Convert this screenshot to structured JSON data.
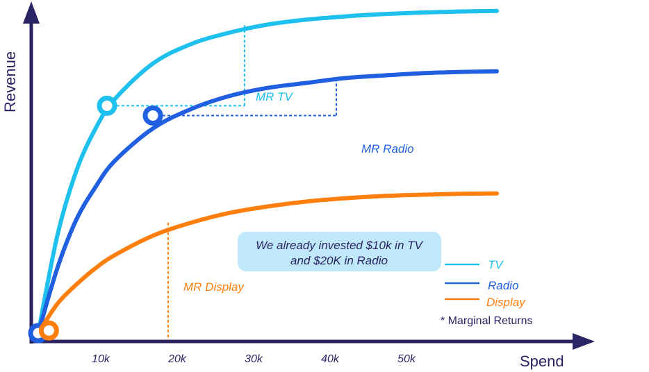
{
  "chart_data": {
    "type": "line",
    "xlabel": "Spend",
    "ylabel": "Revenue",
    "x_ticks": [
      "10k",
      "20k",
      "30k",
      "40k",
      "50k"
    ],
    "xlim": [
      0,
      60
    ],
    "ylim": [
      0,
      100
    ],
    "grid": false,
    "legend_position": "bottom-right",
    "series": [
      {
        "name": "TV",
        "color": "#1ec0ee",
        "x": [
          0,
          2.5,
          5,
          7.5,
          10,
          15,
          20,
          25,
          30,
          35,
          40,
          45,
          50,
          55,
          60
        ],
        "y": [
          0,
          30,
          50,
          63,
          72,
          83,
          89,
          92.5,
          95,
          96.5,
          97.5,
          98.2,
          98.7,
          99,
          99.2
        ]
      },
      {
        "name": "Radio",
        "color": "#1f5fe0",
        "x": [
          0,
          2.5,
          5,
          7.5,
          10,
          15,
          20,
          25,
          30,
          35,
          40,
          45,
          50,
          55,
          60
        ],
        "y": [
          0,
          20,
          35,
          45,
          53,
          63,
          69,
          73,
          75.5,
          77,
          78.5,
          79.3,
          80,
          80.4,
          80.6
        ]
      },
      {
        "name": "Display",
        "color": "#ff7f0e",
        "x": [
          0,
          2.5,
          5,
          7.5,
          10,
          15,
          20,
          25,
          30,
          35,
          40,
          45,
          50,
          55,
          60
        ],
        "y": [
          0,
          9,
          15,
          20,
          24,
          30,
          34,
          37,
          39,
          40.5,
          41.5,
          42.2,
          42.6,
          42.9,
          43
        ]
      }
    ],
    "annotations": {
      "mr_tv": "MR TV",
      "mr_radio": "MR Radio",
      "mr_display": "MR Display",
      "callout_line1": "We already invested $10k in TV",
      "callout_line2": "and $20K in Radio",
      "footnote": "* Marginal Returns"
    },
    "markers": [
      {
        "series": "TV",
        "x": 9,
        "y": 70
      },
      {
        "series": "Radio",
        "x": 15,
        "y": 67
      },
      {
        "series": "Radio",
        "x": 0,
        "y": 0
      },
      {
        "series": "Display",
        "x": 1.4,
        "y": 0.8
      }
    ],
    "marginal_lines": [
      {
        "series": "TV",
        "x1": 9,
        "x2": 27,
        "y1": 70,
        "y2": 95
      },
      {
        "series": "Radio",
        "x1": 15,
        "x2": 39,
        "y1": 67,
        "y2": 78.5
      },
      {
        "series": "Display",
        "x": 17,
        "y": 34
      }
    ],
    "callout_bg": "#bfe9fb",
    "axis_color": "#2b2464"
  }
}
